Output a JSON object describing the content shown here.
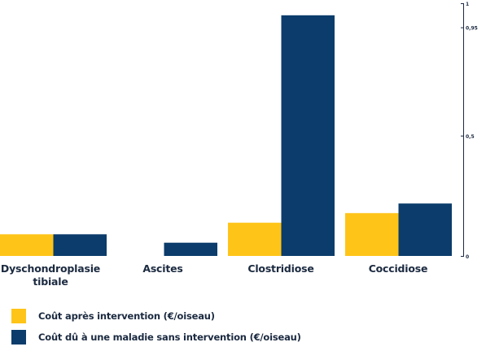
{
  "chart_data": {
    "type": "bar",
    "categories": [
      "Dyschondroplasie tibiale",
      "Ascites",
      "Clostridiose",
      "Coccidiose"
    ],
    "series": [
      {
        "name": "Coût après intervention (€/oiseau)",
        "color": "#fec418",
        "values": [
          0.09,
          0.0,
          0.138,
          0.178
        ]
      },
      {
        "name": "Coût dû à une maladie sans intervention (€/oiseau)",
        "color": "#0b3c6b",
        "values": [
          0.09,
          0.055,
          1.0,
          0.218
        ]
      }
    ],
    "ylim": [
      0,
      1.05
    ],
    "y_ticks": [
      "0",
      "0,5",
      "0,95",
      "1"
    ],
    "y_tick_values": [
      0,
      0.5,
      0.95,
      1.05
    ],
    "y_axis_side": "right",
    "grid": false,
    "legend_position": "bottom-left"
  }
}
